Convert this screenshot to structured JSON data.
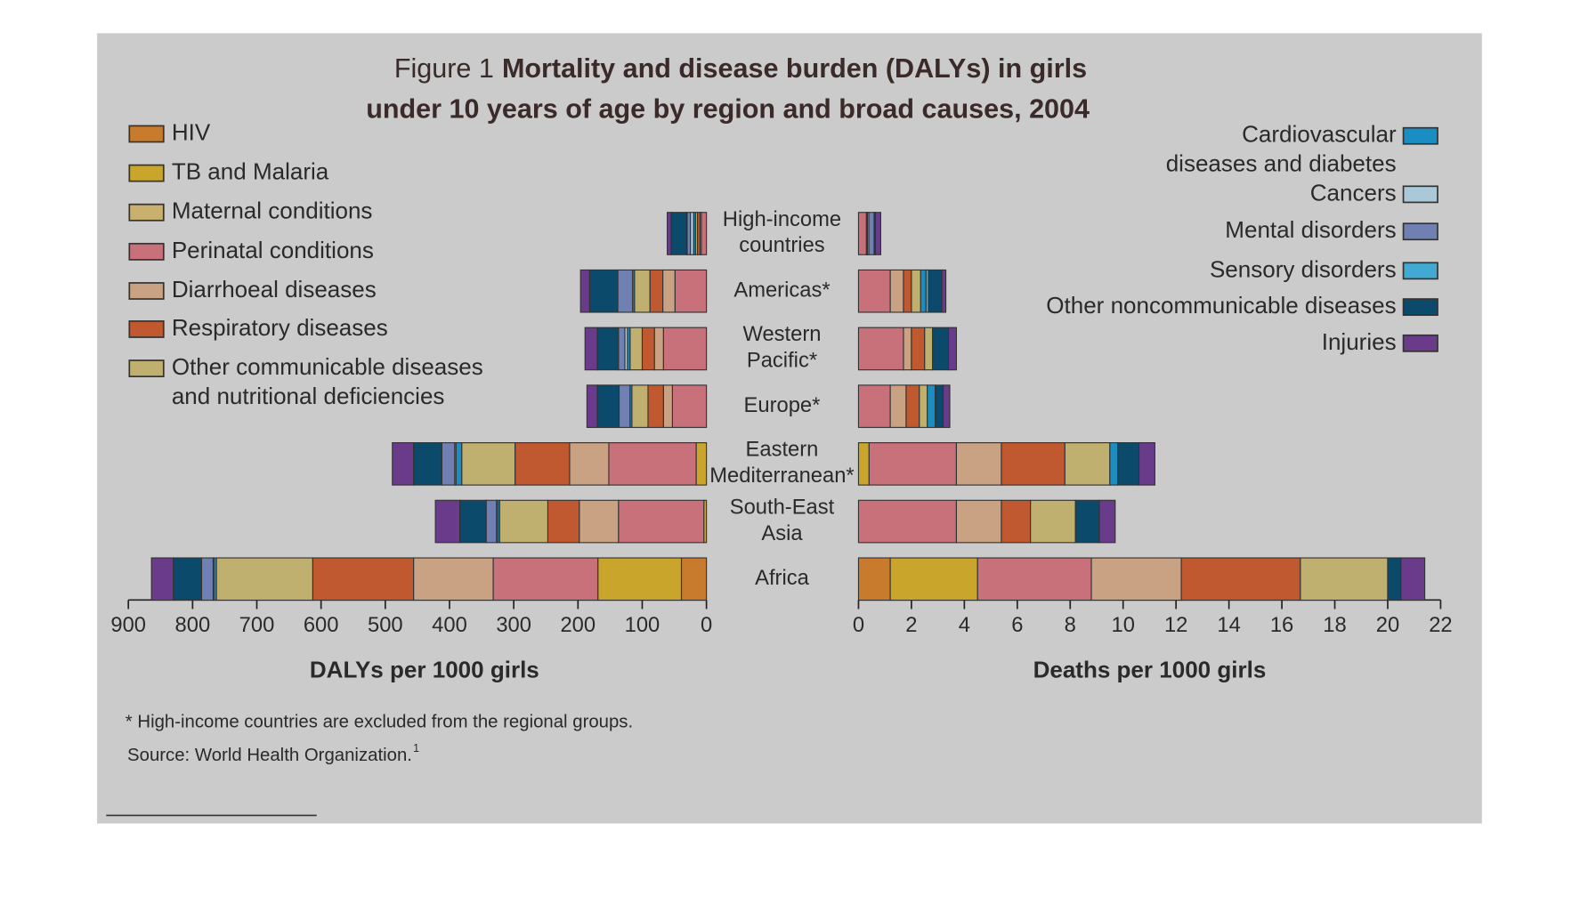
{
  "chart_data": {
    "type": "butterfly_stacked_bar",
    "figure_label": "Figure 1",
    "title": "Mortality and disease burden (DALYs) in girls\nunder 10 years of age by region and broad causes, 2004",
    "categories": [
      "High-income\ncountries",
      "Americas*",
      "Western\nPacific*",
      "Europe*",
      "Eastern\nMediterranean*",
      "South-East\nAsia",
      "Africa"
    ],
    "series": [
      {
        "name": "HIV",
        "color": "#c87b2c"
      },
      {
        "name": "TB and Malaria",
        "color": "#c9a62b"
      },
      {
        "name": "Maternal conditions",
        "color": "#c9b06e"
      },
      {
        "name": "Perinatal conditions",
        "color": "#c8717b"
      },
      {
        "name": "Diarrhoeal diseases",
        "color": "#c9a283"
      },
      {
        "name": "Respiratory diseases",
        "color": "#c0592f"
      },
      {
        "name": "Other communicable diseases\nand nutritional deficiencies",
        "color": "#bfb070"
      },
      {
        "name": "Cardiovascular\ndiseases and diabetes",
        "color": "#1a8ec2"
      },
      {
        "name": "Cancers",
        "color": "#a9c9d9"
      },
      {
        "name": "Mental disorders",
        "color": "#7080b2"
      },
      {
        "name": "Sensory disorders",
        "color": "#42a9d2"
      },
      {
        "name": "Other noncommunicable diseases",
        "color": "#0b4a6a"
      },
      {
        "name": "Injuries",
        "color": "#6a3b8b"
      }
    ],
    "panels": [
      {
        "xlabel": "DALYs per 1000 girls",
        "direction": "left",
        "xlim": [
          0,
          900
        ],
        "xticks": [
          0,
          100,
          200,
          300,
          400,
          500,
          600,
          700,
          800,
          900
        ],
        "series": [
          {
            "values": [
              0,
              0,
              0,
              0,
              0,
              0,
              39
            ]
          },
          {
            "values": [
              0,
              0,
              0,
              0,
              16,
              4,
              130
            ]
          },
          {
            "values": [
              0,
              0,
              0,
              0,
              0,
              0,
              0
            ]
          },
          {
            "values": [
              8,
              49,
              67,
              53,
              136,
              133,
              163
            ]
          },
          {
            "values": [
              2,
              19,
              14,
              14,
              61,
              61,
              124
            ]
          },
          {
            "values": [
              4,
              20,
              19,
              24,
              85,
              49,
              157
            ]
          },
          {
            "values": [
              3,
              24,
              19,
              25,
              83,
              75,
              150
            ]
          },
          {
            "values": [
              3,
              3,
              4,
              3,
              9,
              3,
              4
            ]
          },
          {
            "values": [
              5,
              0,
              4,
              0,
              2,
              2,
              1
            ]
          },
          {
            "values": [
              5,
              23,
              10,
              17,
              20,
              16,
              18
            ]
          },
          {
            "values": [
              1,
              0,
              0,
              0,
              0,
              0,
              0
            ]
          },
          {
            "values": [
              24,
              44,
              33,
              34,
              44,
              41,
              44
            ]
          },
          {
            "values": [
              6,
              14,
              19,
              16,
              33,
              38,
              34
            ]
          }
        ]
      },
      {
        "xlabel": "Deaths per 1000 girls",
        "direction": "right",
        "xlim": [
          0,
          22
        ],
        "xticks": [
          0,
          2,
          4,
          6,
          8,
          10,
          12,
          14,
          16,
          18,
          20,
          22
        ],
        "series": [
          {
            "values": [
              0,
              0,
              0,
              0,
              0,
              0,
              1.2
            ]
          },
          {
            "values": [
              0,
              0,
              0,
              0,
              0.4,
              0,
              3.3
            ]
          },
          {
            "values": [
              0,
              0,
              0,
              0,
              0,
              0,
              0
            ]
          },
          {
            "values": [
              0.3,
              1.2,
              1.7,
              1.2,
              3.3,
              3.7,
              4.3
            ]
          },
          {
            "values": [
              0,
              0.5,
              0.3,
              0.6,
              1.7,
              1.7,
              3.4
            ]
          },
          {
            "values": [
              0.02,
              0.3,
              0.5,
              0.5,
              2.4,
              1.1,
              4.5
            ]
          },
          {
            "values": [
              0,
              0.35,
              0.3,
              0.3,
              1.7,
              1.7,
              3.3
            ]
          },
          {
            "values": [
              0.02,
              0.2,
              0,
              0.3,
              0.3,
              0,
              0
            ]
          },
          {
            "values": [
              0.05,
              0,
              0,
              0,
              0,
              0,
              0
            ]
          },
          {
            "values": [
              0.2,
              0,
              0,
              0,
              0,
              0,
              0
            ]
          },
          {
            "values": [
              0,
              0.1,
              0,
              0,
              0,
              0,
              0
            ]
          },
          {
            "values": [
              0.05,
              0.5,
              0.6,
              0.3,
              0.8,
              0.9,
              0.5
            ]
          },
          {
            "values": [
              0.2,
              0.15,
              0.3,
              0.25,
              0.6,
              0.6,
              0.9
            ]
          }
        ]
      }
    ],
    "footnote": "* High-income countries are excluded from the regional groups.",
    "source": "Source: World Health Organization.",
    "source_ref": "1"
  }
}
